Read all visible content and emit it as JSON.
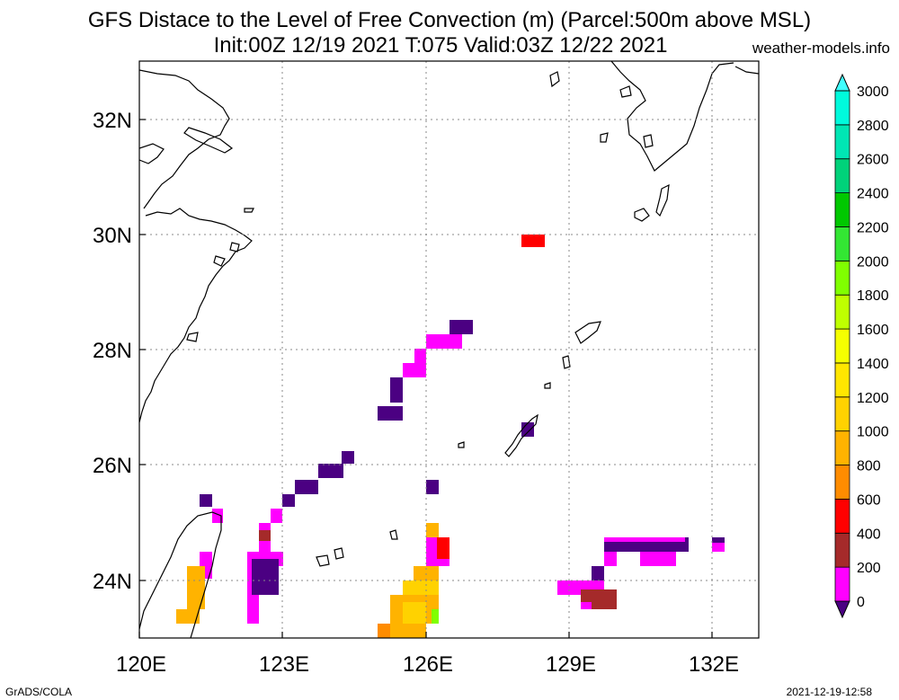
{
  "title_line1": "GFS Distace to the Level of Free Convection (m) (Parcel:500m above MSL)",
  "title_line2": "Init:00Z 12/19 2021 T:075 Valid:03Z 12/22 2021",
  "site": "weather-models.info",
  "footer_left": "GrADS/COLA",
  "footer_right": "2021-12-19-12:58",
  "map": {
    "lon_range": [
      120,
      133
    ],
    "lat_range": [
      23,
      33
    ],
    "lon_ticks": [
      "120E",
      "123E",
      "126E",
      "129E",
      "132E"
    ],
    "lat_ticks": [
      "24N",
      "26N",
      "28N",
      "30N",
      "32N"
    ],
    "gridlines": true,
    "coastline_color": "#000000"
  },
  "colorbar": {
    "labels": [
      "0",
      "200",
      "400",
      "600",
      "800",
      "1000",
      "1200",
      "1400",
      "1600",
      "1800",
      "2000",
      "2200",
      "2400",
      "2600",
      "2800",
      "3000"
    ],
    "colors": [
      "#4b0082",
      "#ff00ff",
      "#a52a2a",
      "#ff0000",
      "#ff8c00",
      "#ffb300",
      "#ffd200",
      "#ffe600",
      "#f5ff00",
      "#bfff00",
      "#80ff00",
      "#33e633",
      "#00c800",
      "#00d27a",
      "#00e6b4",
      "#00fadc",
      "#40ffff"
    ]
  }
}
